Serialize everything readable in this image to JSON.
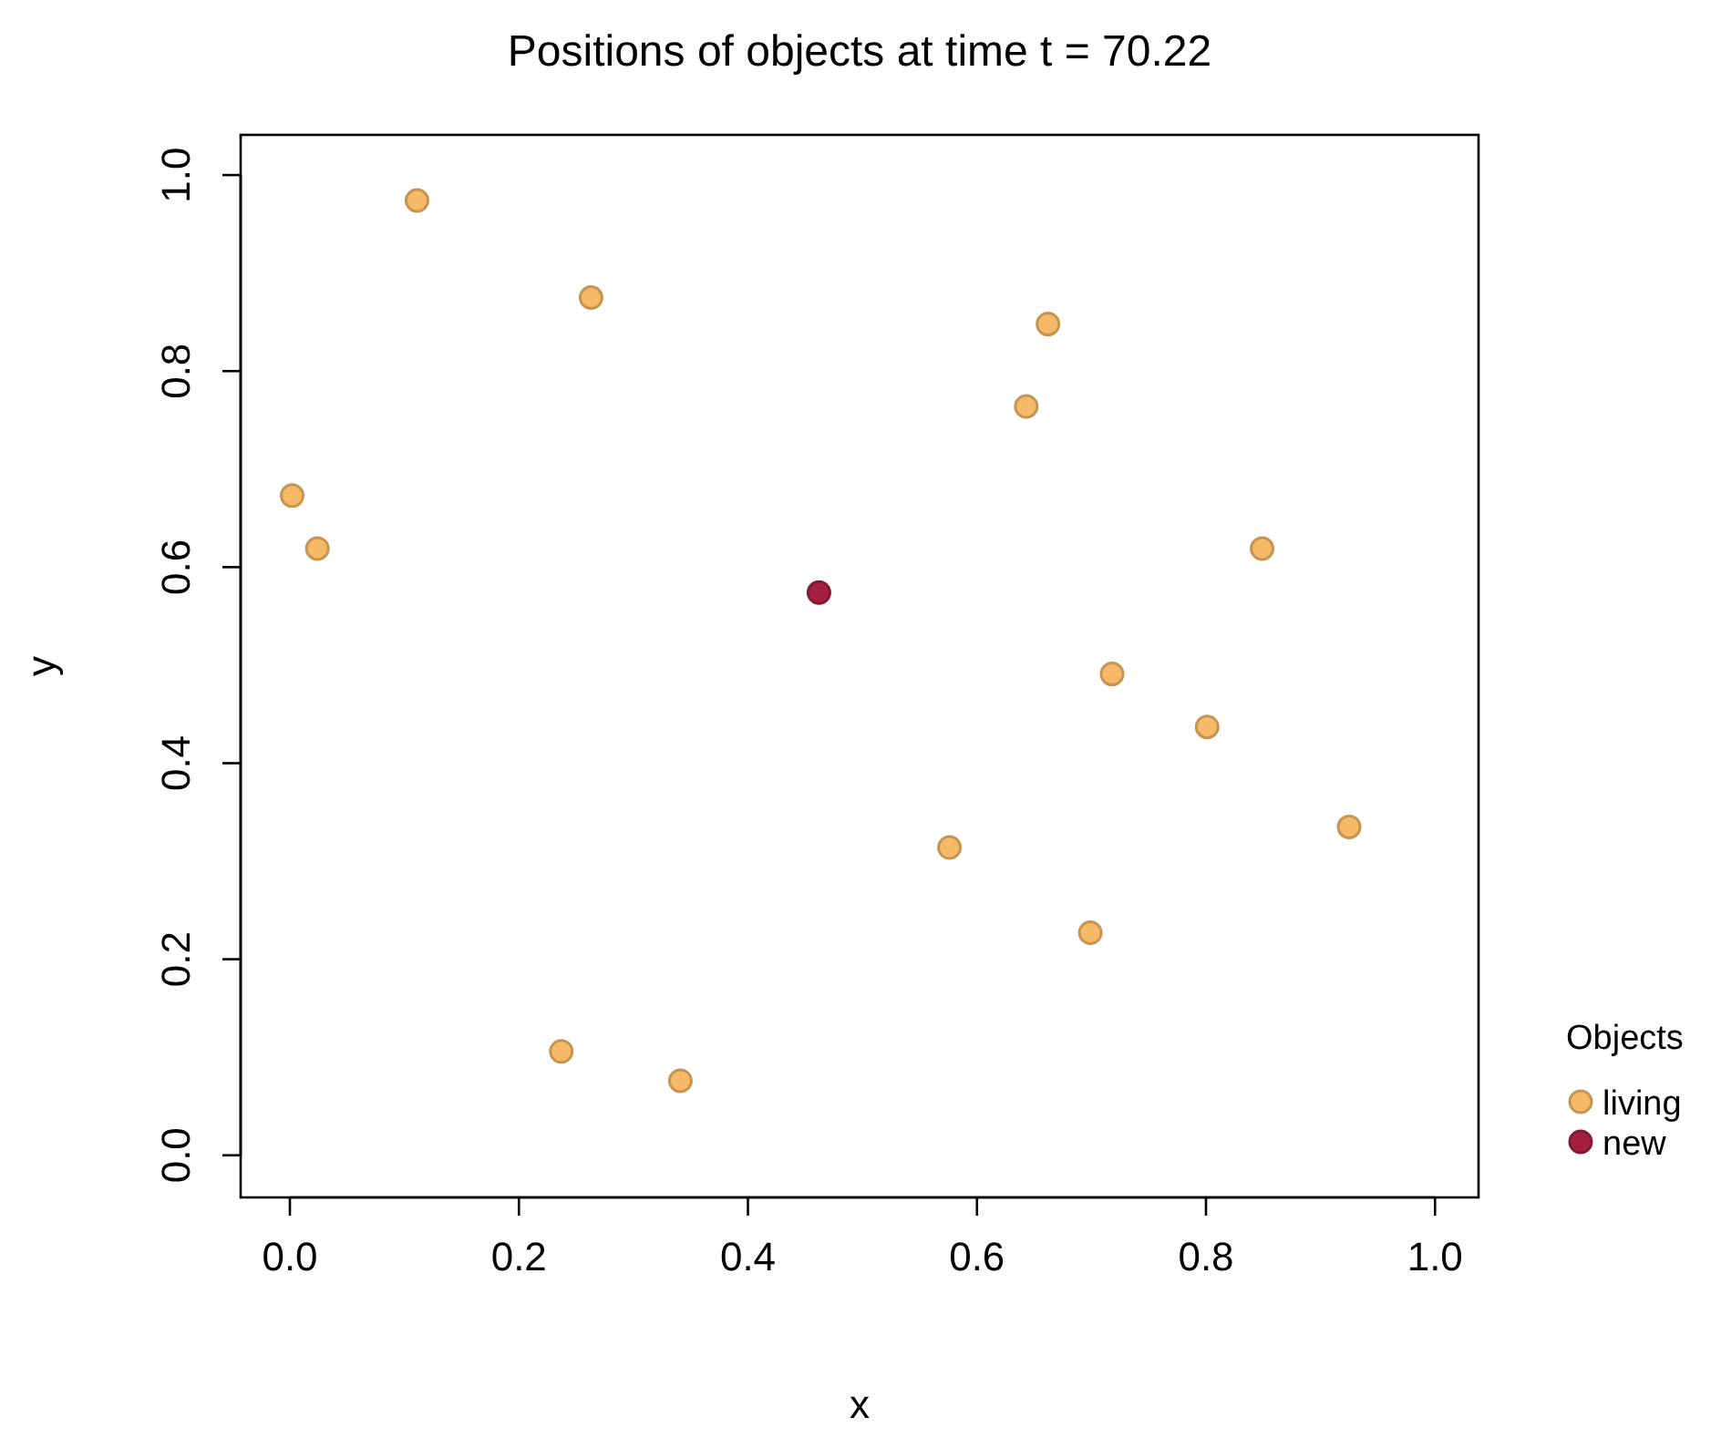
{
  "chart_data": {
    "type": "scatter",
    "title": "Positions of objects at time t = 70.22",
    "xlabel": "x",
    "ylabel": "y",
    "legend_title": "Objects",
    "legend": "right",
    "marker": "circle",
    "grid": false,
    "xlim": [
      -0.043,
      1.038
    ],
    "ylim": [
      -0.043,
      1.041
    ],
    "xticks": [
      {
        "value": 0,
        "label": "0.0"
      },
      {
        "value": 0.2,
        "label": "0.2"
      },
      {
        "value": 0.4,
        "label": "0.4"
      },
      {
        "value": 0.6,
        "label": "0.6"
      },
      {
        "value": 0.8,
        "label": "0.8"
      },
      {
        "value": 1,
        "label": "1.0"
      }
    ],
    "yticks": [
      {
        "value": 0,
        "label": "0.0"
      },
      {
        "value": 0.2,
        "label": "0.2"
      },
      {
        "value": 0.4,
        "label": "0.4"
      },
      {
        "value": 0.6,
        "label": "0.6"
      },
      {
        "value": 0.8,
        "label": "0.8"
      },
      {
        "value": 1,
        "label": "1.0"
      }
    ],
    "series": [
      {
        "name": "living",
        "color": "#f5b968",
        "x": [
          0.111,
          0.263,
          0.002,
          0.024,
          0.662,
          0.643,
          0.849,
          0.718,
          0.801,
          0.925,
          0.576,
          0.699,
          0.237,
          0.341
        ],
        "values": [
          0.974,
          0.875,
          0.673,
          0.619,
          0.848,
          0.764,
          0.619,
          0.491,
          0.437,
          0.335,
          0.314,
          0.227,
          0.106,
          0.076
        ]
      },
      {
        "name": "new",
        "color": "#a3213f",
        "x": [
          0.462
        ],
        "values": [
          0.574
        ]
      }
    ]
  }
}
